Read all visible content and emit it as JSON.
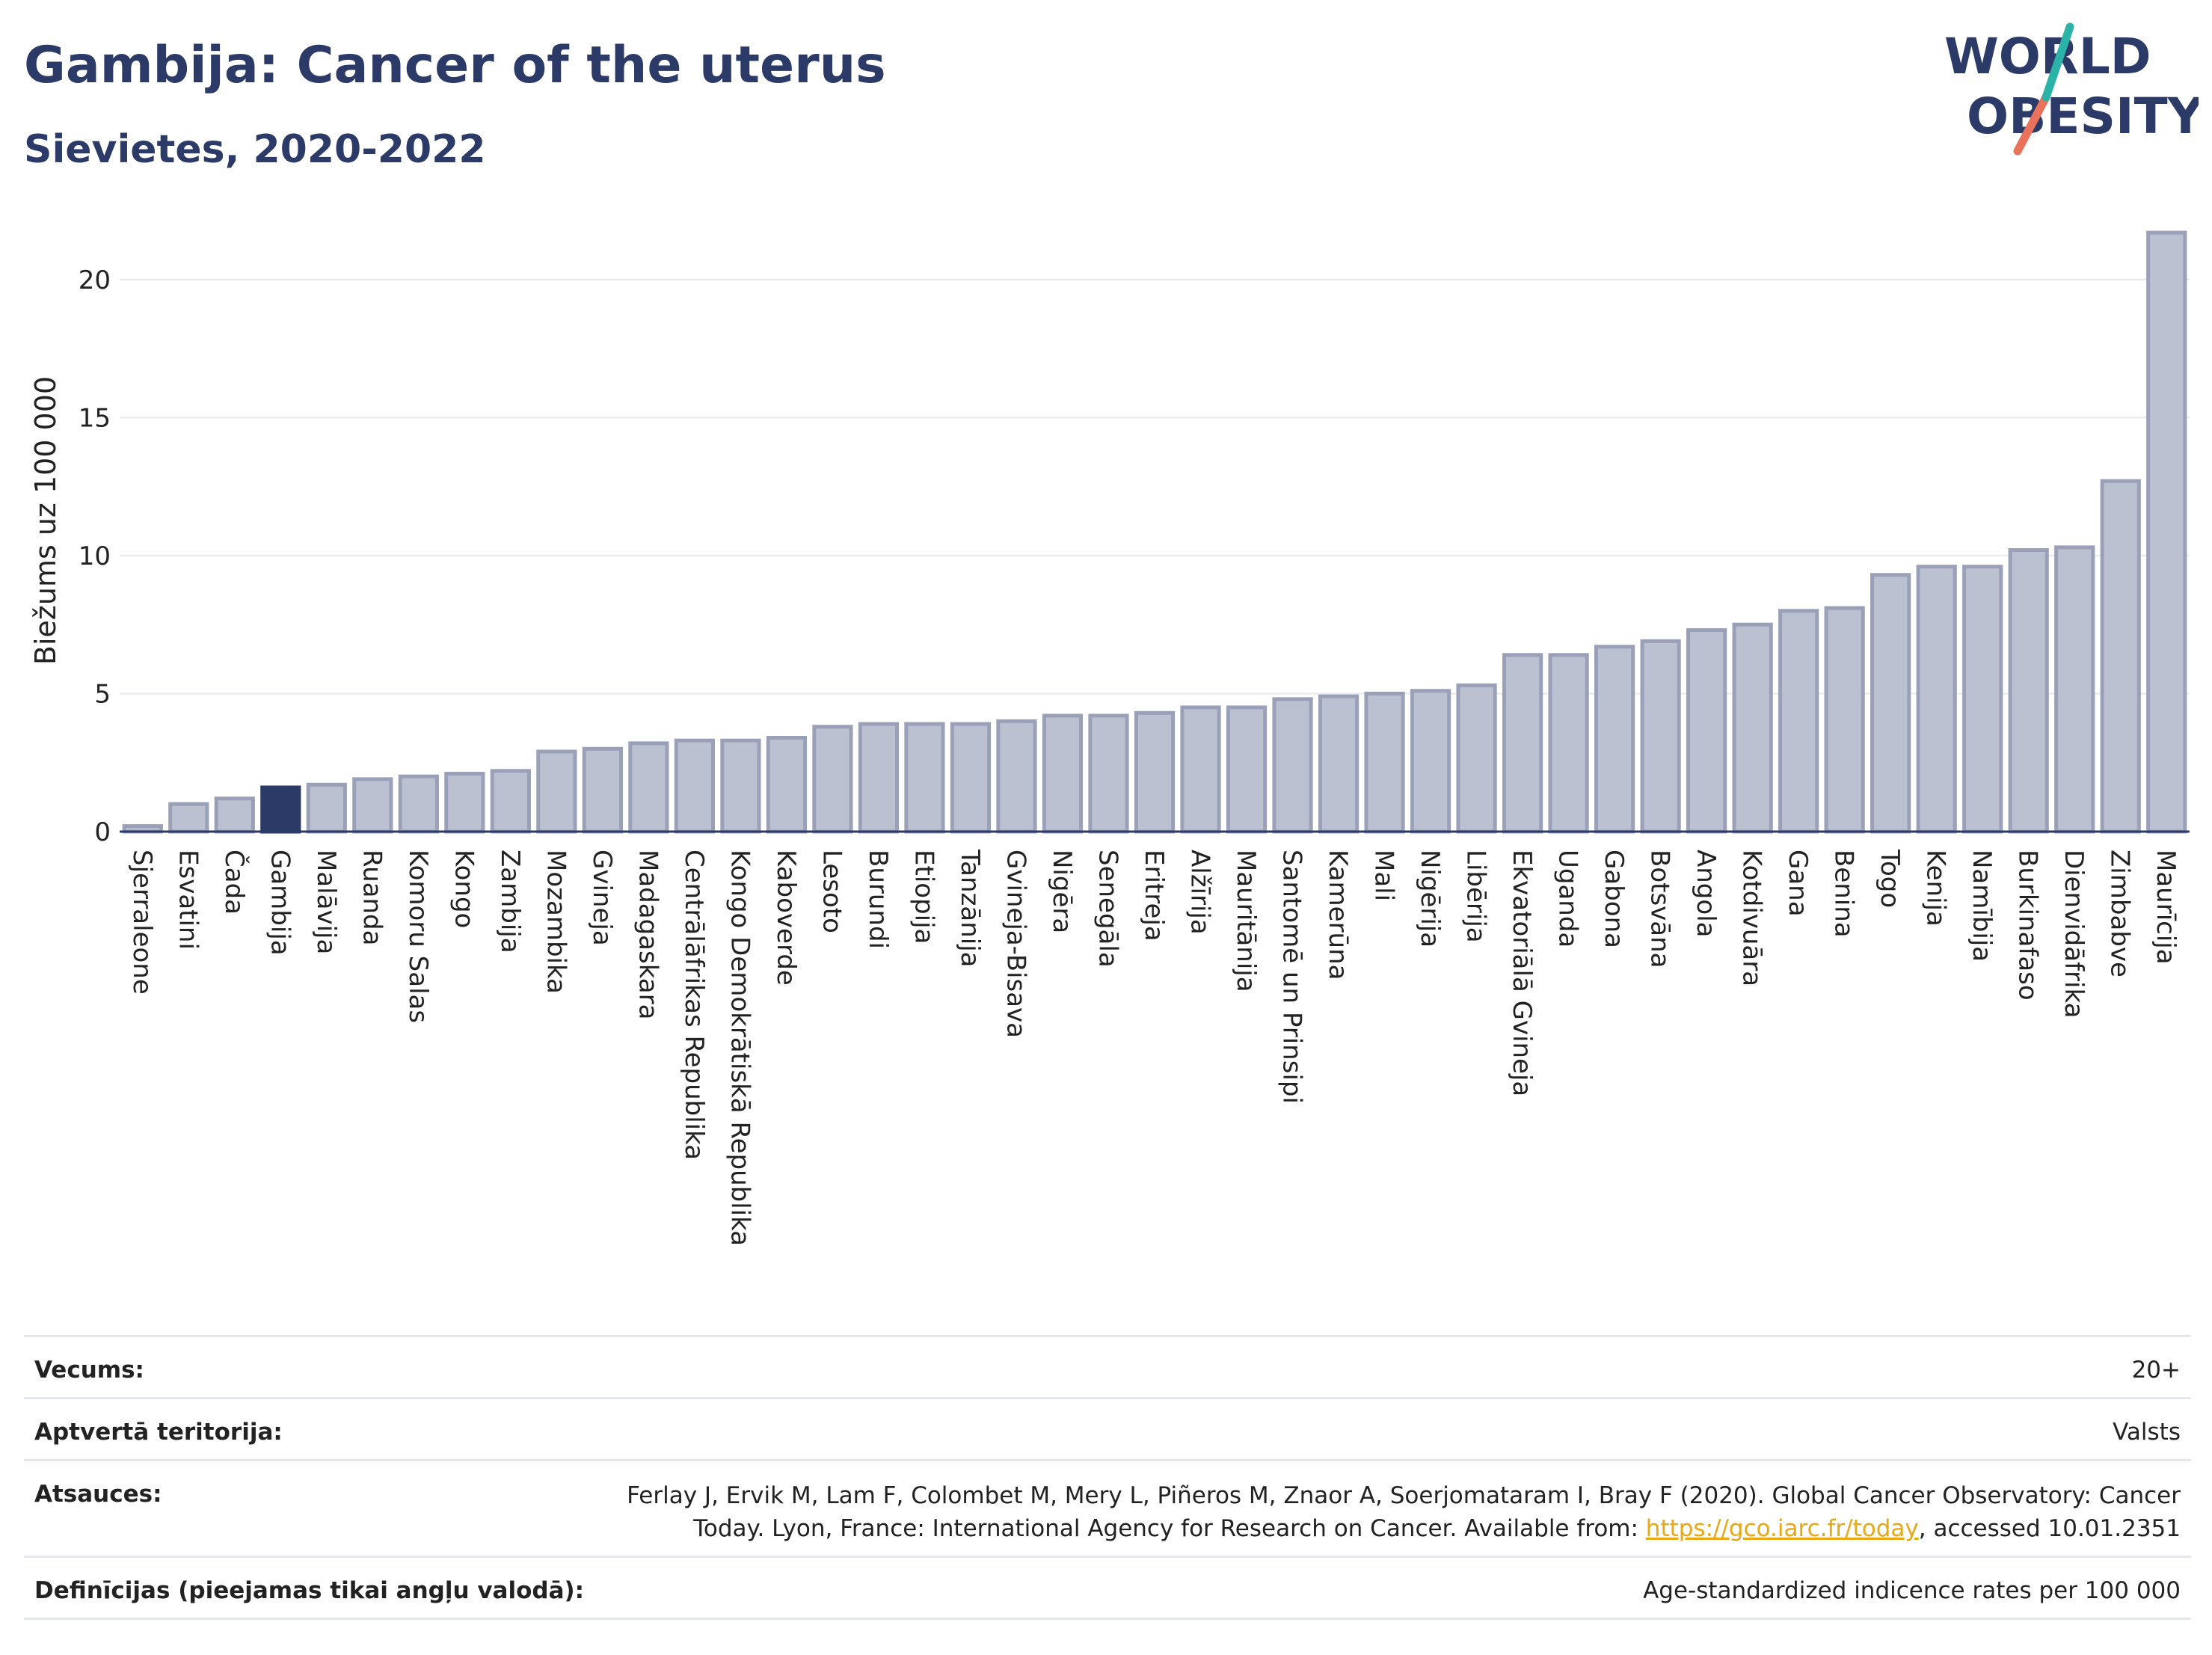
{
  "header": {
    "title": "Gambija: Cancer of the uterus",
    "subtitle": "Sievietes, 2020-2022"
  },
  "logo": {
    "line1": "WORLD",
    "line2": "OBESITY",
    "accent_teal": "#2ab3a6",
    "accent_coral": "#e8725c",
    "text_color": "#2b3a67"
  },
  "colors": {
    "bar": "#bcc1d1",
    "bar_stroke": "#9aa0b8",
    "highlight": "#2b3a67",
    "grid": "#e6e8ee"
  },
  "chart_data": {
    "type": "bar",
    "ylabel": "Biežums uz 100 000",
    "ylim": [
      0,
      22
    ],
    "yticks": [
      0,
      5,
      10,
      15,
      20
    ],
    "highlight": "Gambija",
    "categories": [
      "Sjerraleone",
      "Esvatini",
      "Čada",
      "Gambija",
      "Malāvija",
      "Ruanda",
      "Komoru Salas",
      "Kongo",
      "Zambija",
      "Mozambika",
      "Gvineja",
      "Madagaskara",
      "Centrālāfrikas Republika",
      "Kongo Demokrātiskā Republika",
      "Kaboverde",
      "Lesoto",
      "Burundi",
      "Etiopija",
      "Tanzānija",
      "Gvineja-Bisava",
      "Nigēra",
      "Senegāla",
      "Eritreja",
      "Alžīrija",
      "Mauritānija",
      "Santomē un Prinsipi",
      "Kamerūna",
      "Mali",
      "Nigērija",
      "Libērija",
      "Ekvatoriālā Gvineja",
      "Uganda",
      "Gabona",
      "Botsvāna",
      "Angola",
      "Kotdivuāra",
      "Gana",
      "Benina",
      "Togo",
      "Kenija",
      "Namībija",
      "Burkinafaso",
      "Dienvidāfrika",
      "Zimbabve",
      "Maurīcija"
    ],
    "values": [
      0.2,
      1.0,
      1.2,
      1.6,
      1.7,
      1.9,
      2.0,
      2.1,
      2.2,
      2.9,
      3.0,
      3.2,
      3.3,
      3.3,
      3.4,
      3.8,
      3.9,
      3.9,
      3.9,
      4.0,
      4.2,
      4.2,
      4.3,
      4.5,
      4.5,
      4.8,
      4.9,
      5.0,
      5.1,
      5.3,
      6.4,
      6.4,
      6.7,
      6.9,
      7.3,
      7.5,
      8.0,
      8.1,
      9.3,
      9.6,
      9.6,
      10.2,
      10.3,
      12.7,
      21.7
    ]
  },
  "info": {
    "age_label": "Vecums:",
    "age_value": "20+",
    "territory_label": "Aptvertā teritorija:",
    "territory_value": "Valsts",
    "refs_label": "Atsauces:",
    "refs_line1": "Ferlay J, Ervik M, Lam F, Colombet M, Mery L, Piñeros M, Znaor A, Soerjomataram I, Bray F (2020). Global Cancer Observatory: Cancer",
    "refs_line2_pre": "Today. Lyon, France: International Agency for Research on Cancer. Available from: ",
    "refs_link": "https://gco.iarc.fr/today",
    "refs_line2_post": ", accessed 10.01.2351",
    "defs_label": "Definīcijas (pieejamas tikai angļu valodā):",
    "defs_value": "Age-standardized indicence rates per 100 000"
  }
}
